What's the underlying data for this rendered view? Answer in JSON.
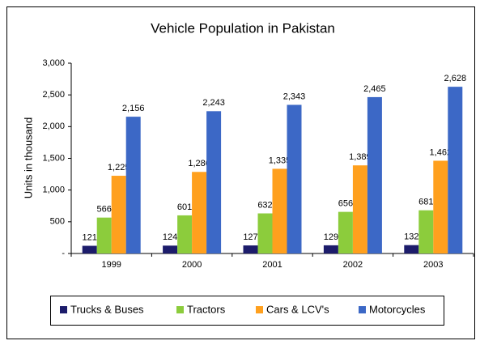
{
  "chart_data": {
    "type": "bar",
    "title": "Vehicle Population in Pakistan",
    "y_label": "Units  in thousand",
    "categories": [
      "1999",
      "2000",
      "2001",
      "2002",
      "2003"
    ],
    "series": [
      {
        "name": "Trucks & Buses",
        "color": "#1c1c6b",
        "values": [
          121,
          124,
          127,
          129,
          132
        ],
        "value_labels": [
          "121",
          "124",
          "127",
          "129",
          "132"
        ]
      },
      {
        "name": "Tractors",
        "color": "#8ccc3c",
        "values": [
          566,
          601,
          632,
          656,
          681
        ],
        "value_labels": [
          "566",
          "601",
          "632",
          "656",
          "681"
        ]
      },
      {
        "name": "Cars & LCV's",
        "color": "#ffa01e",
        "values": [
          1225,
          1286,
          1335,
          1389,
          1462
        ],
        "value_labels": [
          "1,225",
          "1,286",
          "1,335",
          "1,389",
          "1,462"
        ]
      },
      {
        "name": "Motorcycles",
        "color": "#3c68c6",
        "values": [
          2156,
          2243,
          2343,
          2465,
          2628
        ],
        "value_labels": [
          "2,156",
          "2,243",
          "2,343",
          "2,465",
          "2,628"
        ]
      }
    ],
    "ylim": [
      0,
      3000
    ],
    "yticks": [
      {
        "value": 0,
        "label": "-"
      },
      500,
      {
        "value": 1000,
        "label": "1,000"
      },
      {
        "value": 1500,
        "label": "1,500"
      },
      {
        "value": 2000,
        "label": "2,000"
      },
      {
        "value": 2500,
        "label": "2,500"
      },
      {
        "value": 3000,
        "label": "3,000"
      }
    ],
    "grid": false,
    "legend": "bottom"
  }
}
